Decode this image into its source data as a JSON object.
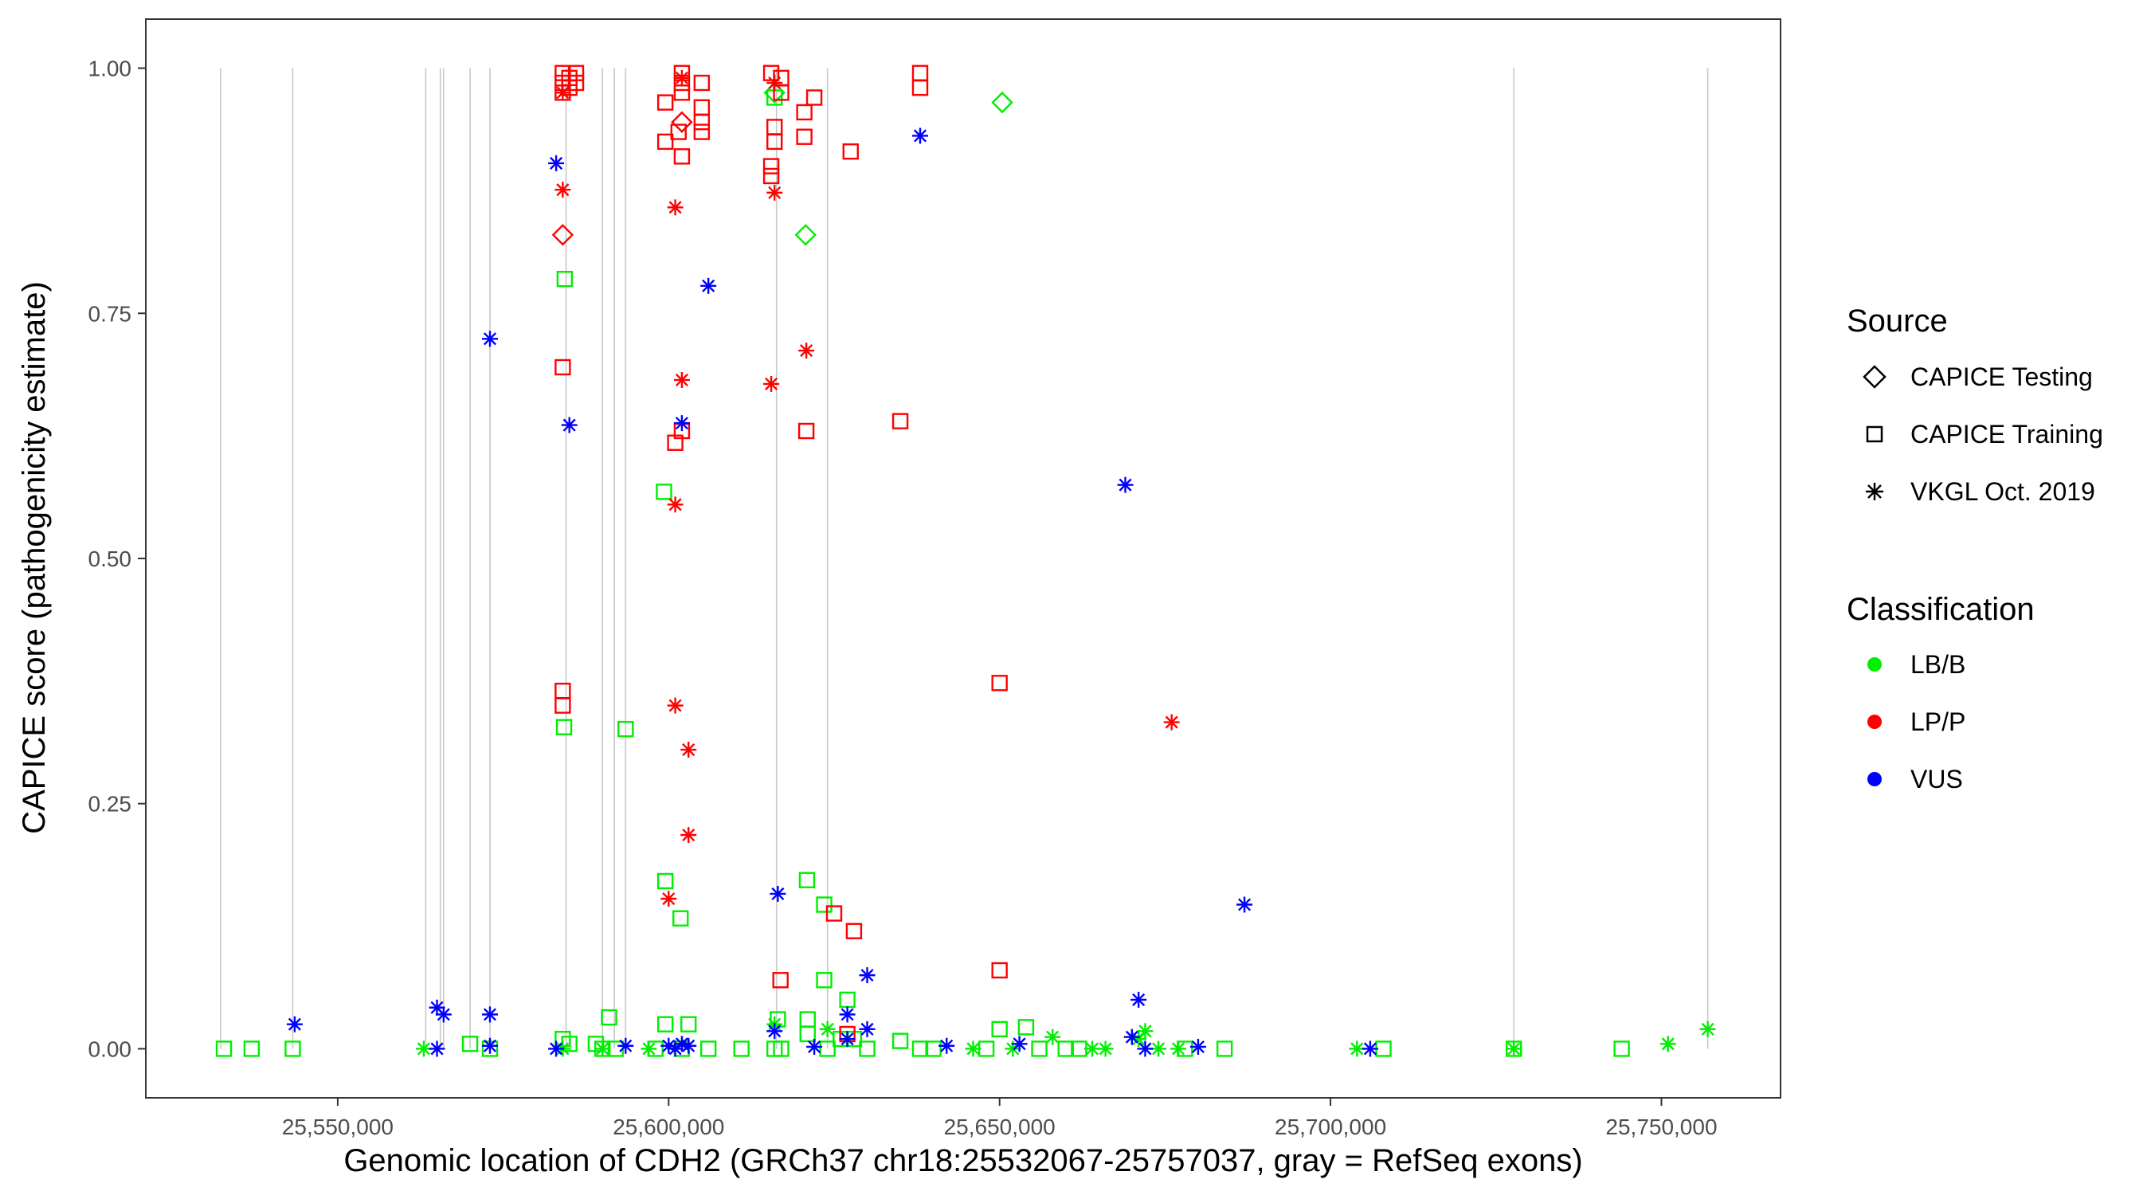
{
  "chart_data": {
    "type": "scatter",
    "xlabel": "Genomic location of CDH2 (GRCh37 chr18:25532067-25757037, gray = RefSeq exons)",
    "ylabel": "CAPICE score (pathogenicity estimate)",
    "xlim": [
      25521000,
      25768000
    ],
    "ylim": [
      -0.05,
      1.05
    ],
    "x_ticks": [
      25550000,
      25600000,
      25650000,
      25700000,
      25750000
    ],
    "x_tick_labels": [
      "25,550,000",
      "25,600,000",
      "25,650,000",
      "25,700,000",
      "25,750,000"
    ],
    "y_ticks": [
      0,
      0.25,
      0.5,
      0.75,
      1
    ],
    "y_tick_labels": [
      "0.00",
      "0.25",
      "0.50",
      "0.75",
      "1.00"
    ],
    "exon_positions": [
      25532300,
      25543200,
      25563300,
      25565500,
      25566000,
      25570000,
      25573000,
      25584500,
      25590000,
      25591800,
      25593500,
      25616300,
      25624000,
      25727700,
      25757000
    ],
    "legend": {
      "source": {
        "title": "Source",
        "items": [
          {
            "label": "CAPICE Testing",
            "shape": "diamond"
          },
          {
            "label": "CAPICE Training",
            "shape": "square"
          },
          {
            "label": "VKGL Oct. 2019",
            "shape": "asterisk"
          }
        ]
      },
      "classification": {
        "title": "Classification",
        "items": [
          {
            "label": "LB/B",
            "color": "#00ee00"
          },
          {
            "label": "LP/P",
            "color": "#ff0000"
          },
          {
            "label": "VUS",
            "color": "#0000ff"
          }
        ]
      }
    },
    "series": [
      {
        "name": "LB/B - CAPICE Training",
        "shape": "square",
        "color": "#00ee00",
        "points": [
          [
            25532800,
            0
          ],
          [
            25537000,
            0
          ],
          [
            25543200,
            0
          ],
          [
            25570000,
            0.005
          ],
          [
            25573000,
            0
          ],
          [
            25584000,
            0.01
          ],
          [
            25585000,
            0.005
          ],
          [
            25589000,
            0.005
          ],
          [
            25590000,
            0
          ],
          [
            25592000,
            0
          ],
          [
            25598000,
            0
          ],
          [
            25599500,
            0.025
          ],
          [
            25602000,
            0
          ],
          [
            25603000,
            0.025
          ],
          [
            25606000,
            0
          ],
          [
            25611000,
            0
          ],
          [
            25616000,
            0
          ],
          [
            25616500,
            0.03
          ],
          [
            25617000,
            0
          ],
          [
            25621000,
            0.03
          ],
          [
            25621000,
            0.015
          ],
          [
            25624000,
            0
          ],
          [
            25626000,
            0.01
          ],
          [
            25627000,
            0.05
          ],
          [
            25628000,
            0.01
          ],
          [
            25630000,
            0
          ],
          [
            25635000,
            0.008
          ],
          [
            25638000,
            0
          ],
          [
            25640000,
            0
          ],
          [
            25648000,
            0
          ],
          [
            25650000,
            0.02
          ],
          [
            25654000,
            0.022
          ],
          [
            25656000,
            0
          ],
          [
            25660000,
            0
          ],
          [
            25662000,
            0
          ],
          [
            25678000,
            0
          ],
          [
            25684000,
            0
          ],
          [
            25708000,
            0
          ],
          [
            25727700,
            0
          ],
          [
            25744000,
            0
          ],
          [
            25584300,
            0.785
          ],
          [
            25599300,
            0.568
          ],
          [
            25584200,
            0.328
          ],
          [
            25593500,
            0.326
          ],
          [
            25599500,
            0.171
          ],
          [
            25601800,
            0.133
          ],
          [
            25620900,
            0.172
          ],
          [
            25623500,
            0.147
          ],
          [
            25623500,
            0.07
          ],
          [
            25591000,
            0.032
          ],
          [
            25616000,
            0.97
          ]
        ]
      },
      {
        "name": "LB/B - CAPICE Testing",
        "shape": "diamond",
        "color": "#00ee00",
        "points": [
          [
            25650400,
            0.965
          ],
          [
            25620700,
            0.83
          ],
          [
            25616000,
            0.975
          ]
        ]
      },
      {
        "name": "LB/B - VKGL Oct. 2019",
        "shape": "asterisk",
        "color": "#00ee00",
        "points": [
          [
            25563000,
            0
          ],
          [
            25584000,
            0
          ],
          [
            25590000,
            0
          ],
          [
            25597000,
            0
          ],
          [
            25616000,
            0.025
          ],
          [
            25624000,
            0.02
          ],
          [
            25646000,
            0
          ],
          [
            25652000,
            0
          ],
          [
            25658000,
            0.012
          ],
          [
            25664000,
            0
          ],
          [
            25666000,
            0
          ],
          [
            25671000,
            0.01
          ],
          [
            25672000,
            0.018
          ],
          [
            25674000,
            0
          ],
          [
            25677000,
            0
          ],
          [
            25704000,
            0
          ],
          [
            25727700,
            0
          ],
          [
            25751000,
            0.005
          ],
          [
            25757000,
            0.02
          ]
        ]
      },
      {
        "name": "LP/P - CAPICE Training",
        "shape": "square",
        "color": "#ff0000",
        "points": [
          [
            25584000,
            0.995
          ],
          [
            25584000,
            0.985
          ],
          [
            25584000,
            0.975
          ],
          [
            25585000,
            0.99
          ],
          [
            25585000,
            0.98
          ],
          [
            25586000,
            0.995
          ],
          [
            25586000,
            0.985
          ],
          [
            25599500,
            0.965
          ],
          [
            25599500,
            0.925
          ],
          [
            25601500,
            0.935
          ],
          [
            25602000,
            0.91
          ],
          [
            25602000,
            0.975
          ],
          [
            25602000,
            0.995
          ],
          [
            25602000,
            0.985
          ],
          [
            25605000,
            0.985
          ],
          [
            25605000,
            0.96
          ],
          [
            25605000,
            0.945
          ],
          [
            25605000,
            0.935
          ],
          [
            25615500,
            0.995
          ],
          [
            25615500,
            0.9
          ],
          [
            25615500,
            0.89
          ],
          [
            25616000,
            0.925
          ],
          [
            25616000,
            0.94
          ],
          [
            25617000,
            0.99
          ],
          [
            25617000,
            0.975
          ],
          [
            25620500,
            0.955
          ],
          [
            25620500,
            0.93
          ],
          [
            25622000,
            0.97
          ],
          [
            25627500,
            0.915
          ],
          [
            25638000,
            0.995
          ],
          [
            25638000,
            0.98
          ],
          [
            25584000,
            0.695
          ],
          [
            25584000,
            0.365
          ],
          [
            25584000,
            0.35
          ],
          [
            25601000,
            0.618
          ],
          [
            25602000,
            0.63
          ],
          [
            25620800,
            0.63
          ],
          [
            25635000,
            0.64
          ],
          [
            25650000,
            0.373
          ],
          [
            25650000,
            0.08
          ],
          [
            25616900,
            0.07
          ],
          [
            25625000,
            0.138
          ],
          [
            25628000,
            0.12
          ],
          [
            25627000,
            0.015
          ]
        ]
      },
      {
        "name": "LP/P - CAPICE Testing",
        "shape": "diamond",
        "color": "#ff0000",
        "points": [
          [
            25584000,
            0.83
          ],
          [
            25602000,
            0.945
          ]
        ]
      },
      {
        "name": "LP/P - VKGL Oct. 2019",
        "shape": "asterisk",
        "color": "#ff0000",
        "points": [
          [
            25584000,
            0.975
          ],
          [
            25584000,
            0.876
          ],
          [
            25601000,
            0.858
          ],
          [
            25602000,
            0.99
          ],
          [
            25616000,
            0.985
          ],
          [
            25616000,
            0.873
          ],
          [
            25615500,
            0.678
          ],
          [
            25620800,
            0.712
          ],
          [
            25602000,
            0.682
          ],
          [
            25601000,
            0.555
          ],
          [
            25601000,
            0.35
          ],
          [
            25603000,
            0.305
          ],
          [
            25603000,
            0.218
          ],
          [
            25600000,
            0.153
          ],
          [
            25676000,
            0.333
          ]
        ]
      },
      {
        "name": "VUS - VKGL Oct. 2019",
        "shape": "asterisk",
        "color": "#0000ff",
        "points": [
          [
            25543500,
            0.025
          ],
          [
            25565000,
            0.042
          ],
          [
            25566000,
            0.035
          ],
          [
            25565000,
            0
          ],
          [
            25573000,
            0.035
          ],
          [
            25573000,
            0.003
          ],
          [
            25583000,
            0
          ],
          [
            25593500,
            0.003
          ],
          [
            25600000,
            0.003
          ],
          [
            25601000,
            0
          ],
          [
            25602000,
            0.005
          ],
          [
            25603000,
            0.003
          ],
          [
            25616000,
            0.018
          ],
          [
            25622000,
            0.002
          ],
          [
            25627000,
            0.01
          ],
          [
            25627000,
            0.035
          ],
          [
            25630000,
            0.02
          ],
          [
            25630000,
            0.075
          ],
          [
            25642000,
            0.003
          ],
          [
            25653000,
            0.005
          ],
          [
            25671000,
            0.05
          ],
          [
            25670000,
            0.012
          ],
          [
            25672000,
            0
          ],
          [
            25680000,
            0.002
          ],
          [
            25706000,
            0
          ],
          [
            25583000,
            0.903
          ],
          [
            25573000,
            0.724
          ],
          [
            25585000,
            0.636
          ],
          [
            25602000,
            0.638
          ],
          [
            25606000,
            0.778
          ],
          [
            25638000,
            0.931
          ],
          [
            25669000,
            0.575
          ],
          [
            25687000,
            0.147
          ],
          [
            25616500,
            0.158
          ]
        ]
      }
    ]
  }
}
